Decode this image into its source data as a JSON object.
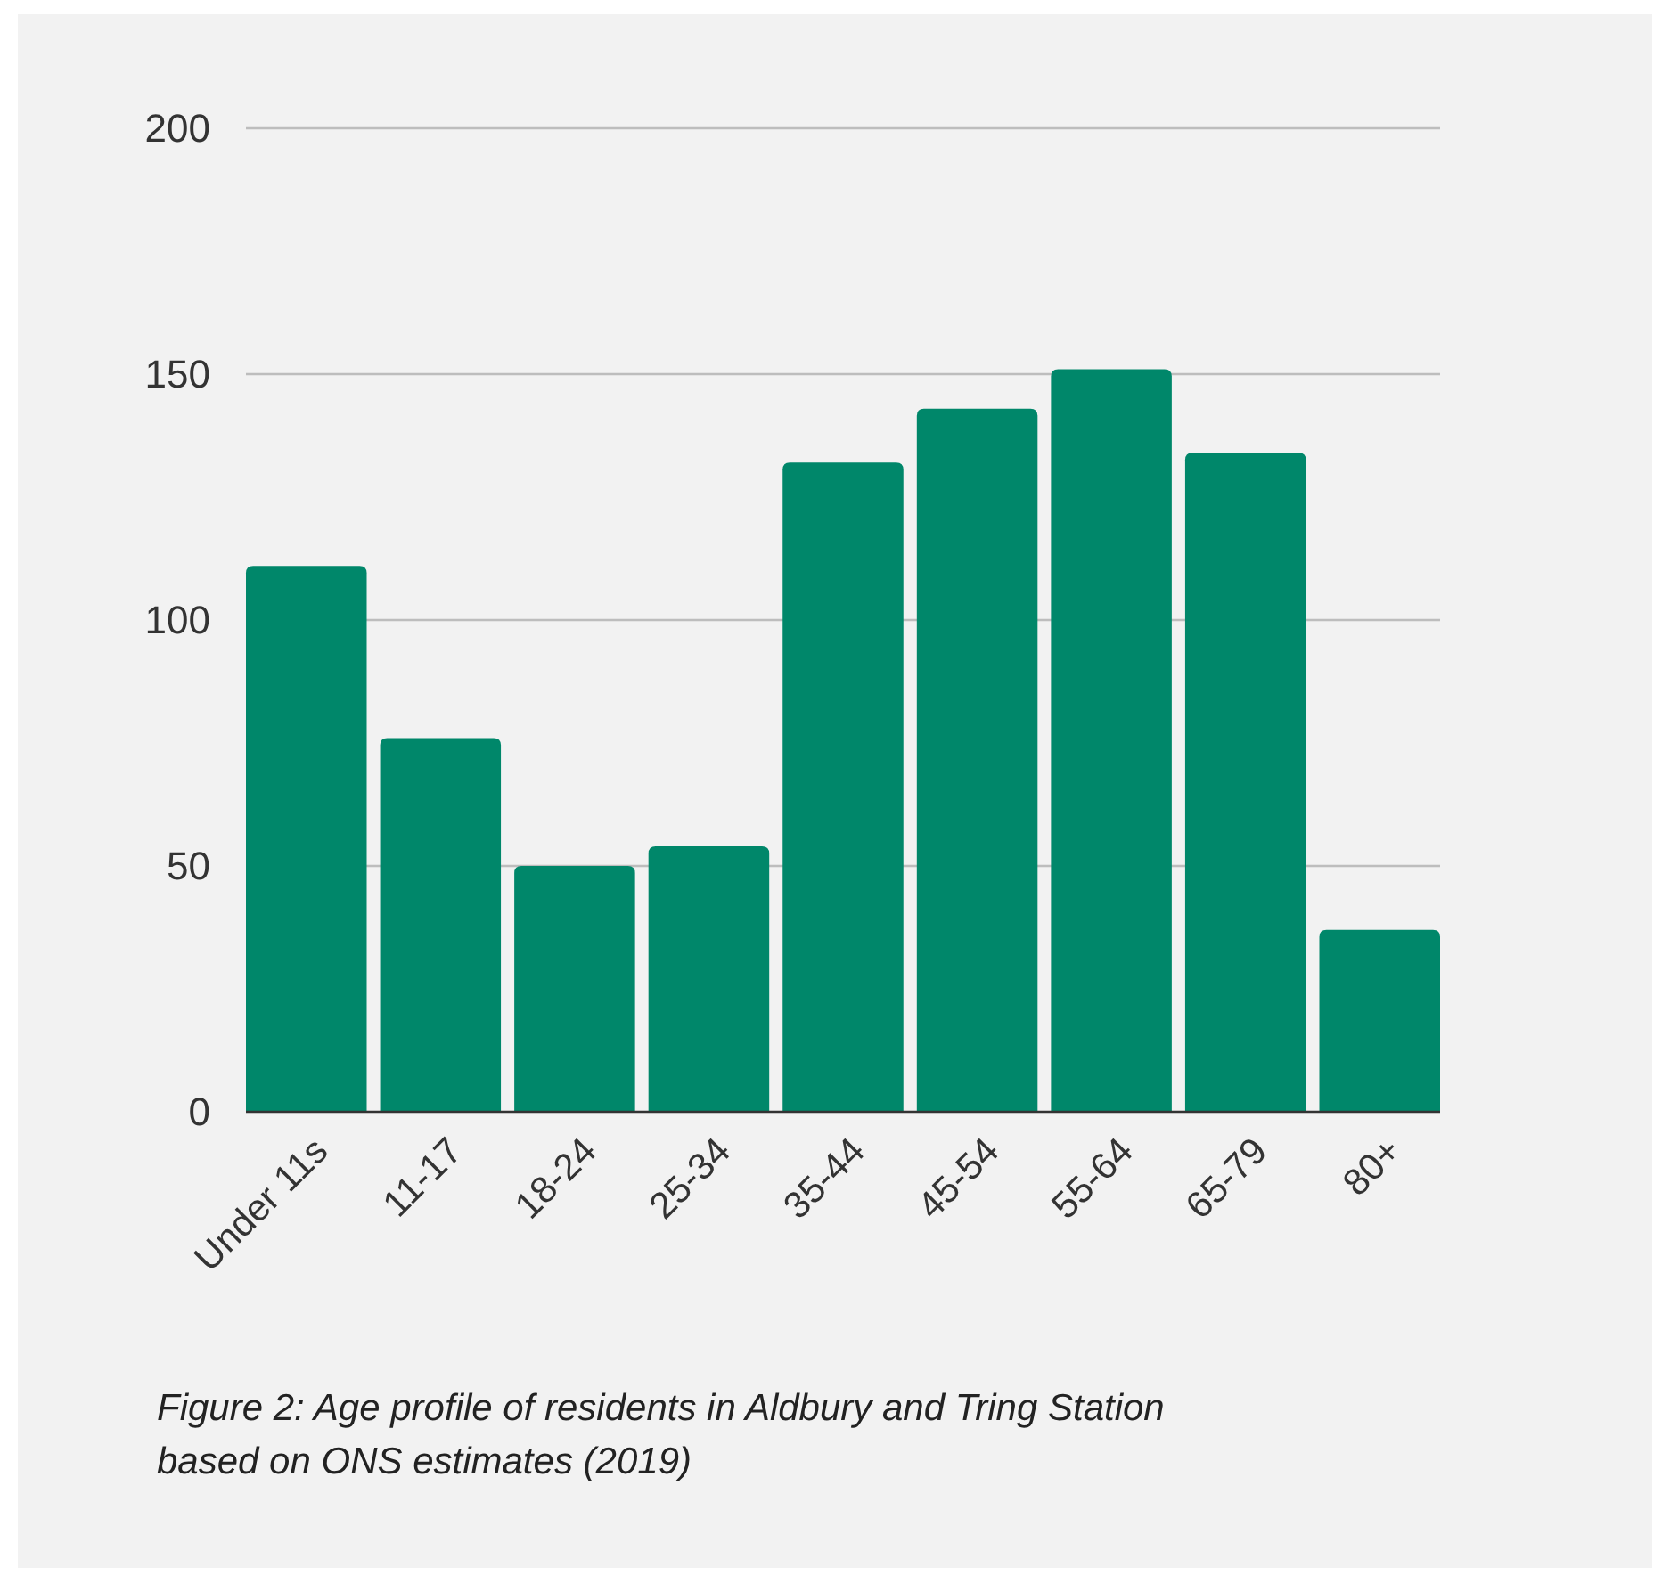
{
  "chart_data": {
    "type": "bar",
    "categories": [
      "Under 11s",
      "11-17",
      "18-24",
      "25-34",
      "35-44",
      "45-54",
      "55-64",
      "65-79",
      "80+"
    ],
    "values": [
      111,
      76,
      50,
      54,
      132,
      143,
      151,
      134,
      37
    ],
    "color": "#00876a",
    "ylim": [
      0,
      200
    ],
    "yticks": [
      0,
      50,
      100,
      150,
      200
    ],
    "grid": "y",
    "annotations": [
      "Figure 2: Age profile of residents in Aldbury and Tring Station based on ONS estimates (2019)"
    ]
  }
}
